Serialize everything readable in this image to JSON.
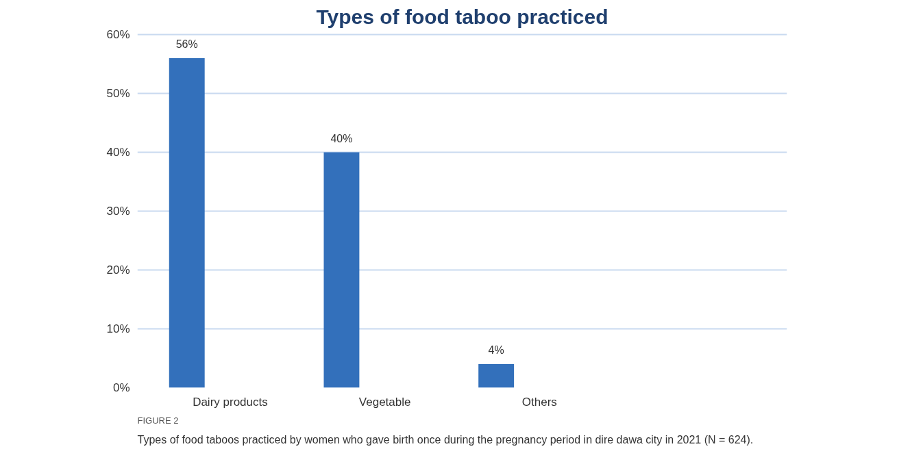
{
  "chart_data": {
    "type": "bar",
    "title": "Types of food taboo practiced",
    "categories": [
      "Dairy products",
      "Vegetable",
      "Others",
      null
    ],
    "values": [
      56,
      40,
      4,
      null
    ],
    "value_labels": [
      "56%",
      "40%",
      "4%",
      null
    ],
    "color": "#3370bb",
    "ylim": [
      0,
      60
    ],
    "yticks": [
      {
        "value": 0,
        "label": "0%"
      },
      {
        "value": 10,
        "label": "10%"
      },
      {
        "value": 20,
        "label": "20%"
      },
      {
        "value": 30,
        "label": "30%"
      },
      {
        "value": 40,
        "label": "40%"
      },
      {
        "value": 50,
        "label": "50%"
      },
      {
        "value": 60,
        "label": "60%"
      }
    ],
    "grid": "y",
    "annotations": [
      "FIGURE 2",
      "Types of food taboos practiced by women who gave birth once during the pregnancy period in dire dawa city in 2021 (N = 624)."
    ]
  }
}
